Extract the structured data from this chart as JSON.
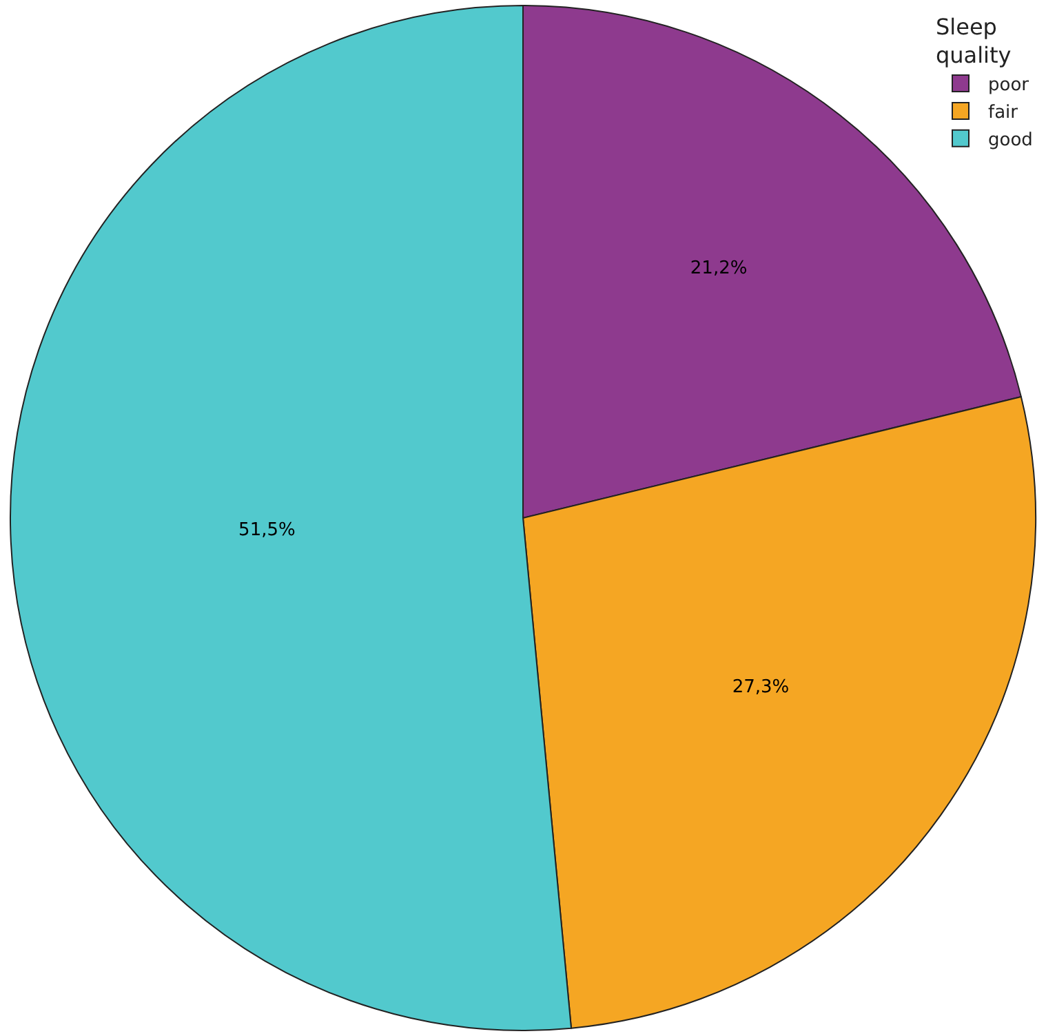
{
  "chart_data": {
    "type": "pie",
    "categories": [
      "poor",
      "fair",
      "good"
    ],
    "values": [
      21.2,
      27.3,
      51.5
    ],
    "colors": [
      "#8e3a8e",
      "#f5a623",
      "#52c9cd"
    ],
    "value_labels": [
      "21,2%",
      "27,3%",
      "51,5%"
    ],
    "legend_title": "Sleep quality",
    "legend": "top right"
  }
}
